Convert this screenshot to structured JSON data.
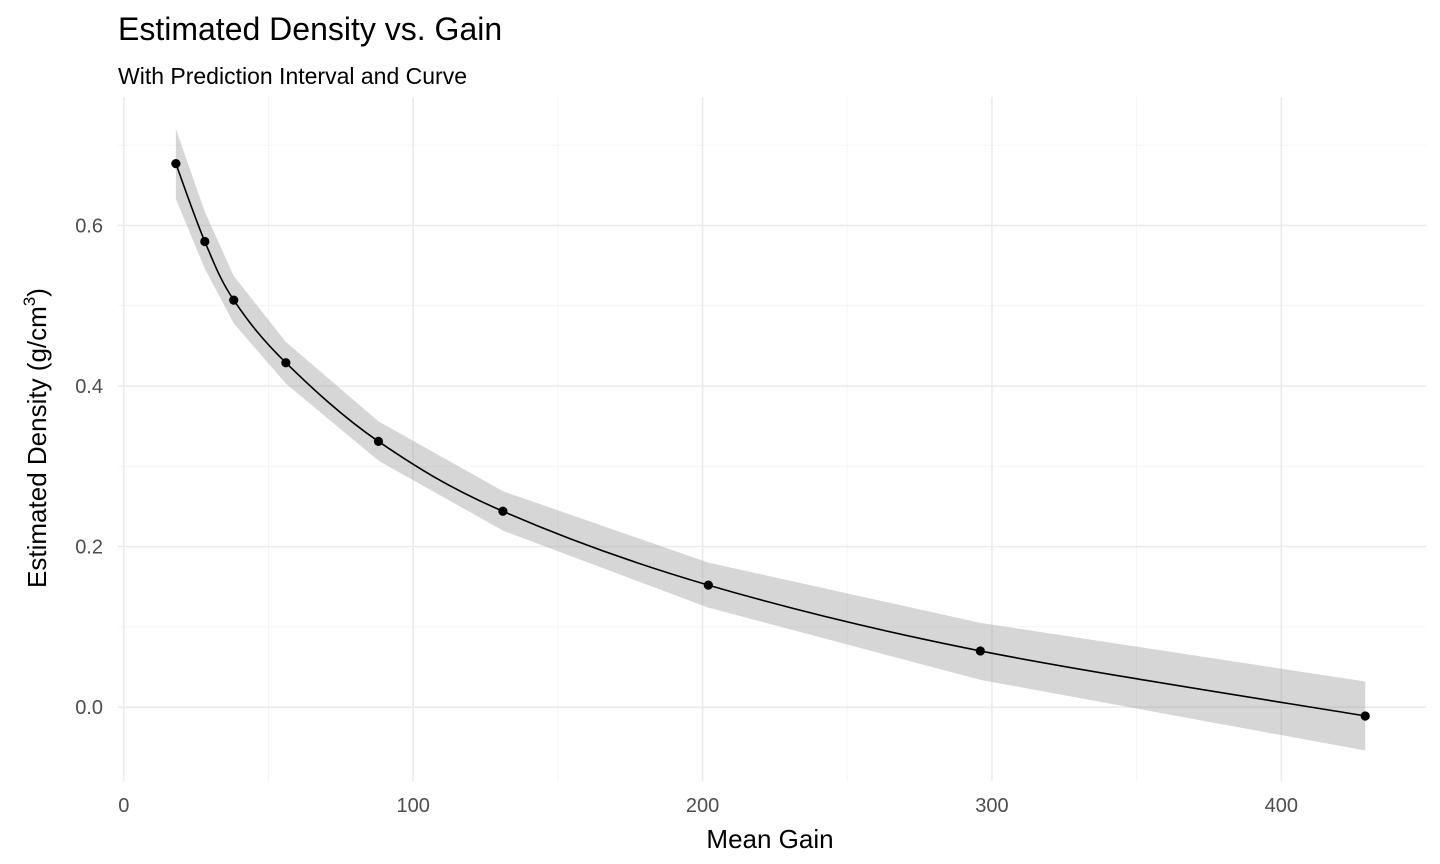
{
  "chart_data": {
    "type": "line",
    "title": "Estimated Density vs. Gain",
    "subtitle": "With Prediction Interval and Curve",
    "xlabel": "Mean Gain",
    "ylabel_main": "Estimated Density (g/cm",
    "ylabel_sup": "3",
    "ylabel_close": ")",
    "xlim": [
      -2,
      450
    ],
    "ylim": [
      -0.092,
      0.76
    ],
    "x_ticks": [
      0,
      100,
      200,
      300,
      400
    ],
    "x_tick_labels": [
      "0",
      "100",
      "200",
      "300",
      "400"
    ],
    "x_minor": [
      50,
      150,
      250,
      350
    ],
    "y_ticks": [
      0.0,
      0.2,
      0.4,
      0.6
    ],
    "y_tick_labels": [
      "0.0",
      "0.2",
      "0.4",
      "0.6"
    ],
    "y_minor": [
      0.1,
      0.3,
      0.5,
      0.7
    ],
    "grid": true,
    "legend": "none",
    "points": {
      "x": [
        18,
        28,
        38,
        56,
        88,
        131,
        202,
        296,
        429
      ],
      "y": [
        0.677,
        0.58,
        0.507,
        0.429,
        0.331,
        0.244,
        0.152,
        0.07,
        -0.011
      ]
    },
    "prediction_interval": {
      "x": [
        18,
        28,
        38,
        56,
        88,
        131,
        202,
        296,
        429
      ],
      "lower": [
        0.633,
        0.546,
        0.478,
        0.403,
        0.307,
        0.22,
        0.124,
        0.034,
        -0.054
      ],
      "upper": [
        0.72,
        0.617,
        0.537,
        0.455,
        0.356,
        0.269,
        0.18,
        0.105,
        0.032
      ]
    },
    "colors": {
      "band": "#999999",
      "line": "#000000",
      "grid": "#ebebeb",
      "tick_text": "#4d4d4d"
    }
  }
}
